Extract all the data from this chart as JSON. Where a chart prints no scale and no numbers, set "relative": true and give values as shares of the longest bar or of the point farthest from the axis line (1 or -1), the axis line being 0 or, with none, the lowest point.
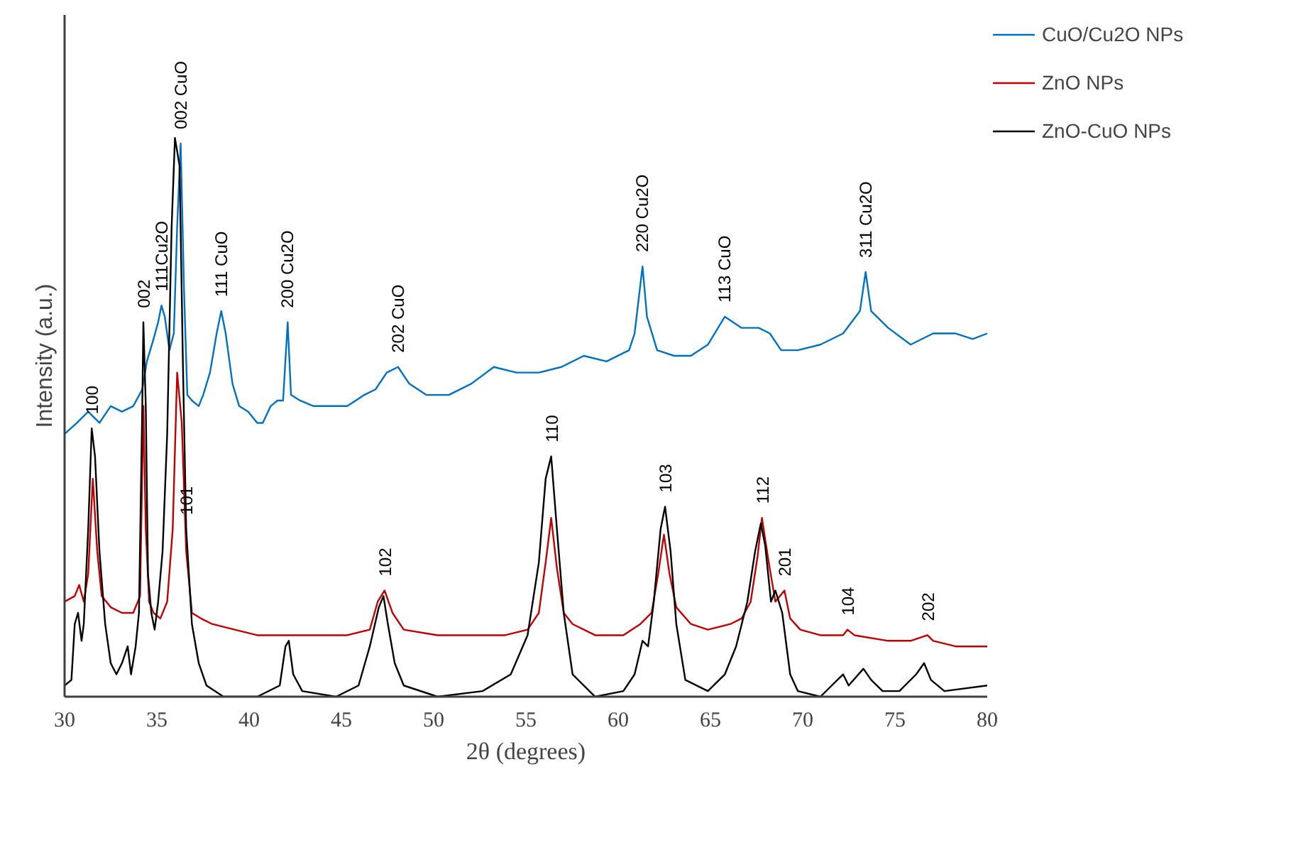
{
  "chart_data": {
    "type": "line",
    "relative": true,
    "xlabel": "2θ (degrees)",
    "ylabel": "Intensity (a.u.)",
    "xlim": [
      30,
      80
    ],
    "xticks": [
      30,
      35,
      40,
      45,
      50,
      55,
      60,
      65,
      70,
      75,
      80
    ],
    "grid": false,
    "legend": "right",
    "marker": "none",
    "line_style": "solid",
    "series": [
      {
        "name": "CuO/Cu2O NPs",
        "color": "#0070c0",
        "x": [
          30.0,
          30.67,
          31.28,
          31.89,
          32.5,
          33.11,
          33.72,
          34.21,
          34.46,
          34.82,
          35.07,
          35.25,
          35.43,
          35.68,
          35.92,
          36.1,
          36.29,
          36.47,
          36.65,
          36.9,
          37.27,
          37.51,
          37.88,
          38.24,
          38.49,
          38.73,
          39.1,
          39.46,
          39.95,
          40.44,
          40.74,
          41.17,
          41.54,
          41.84,
          42.09,
          42.27,
          42.76,
          43.49,
          44.41,
          45.32,
          46.24,
          46.85,
          47.46,
          48.07,
          48.68,
          49.6,
          50.82,
          52.04,
          53.26,
          54.48,
          55.7,
          56.92,
          58.14,
          59.37,
          60.59,
          60.89,
          61.32,
          61.56,
          62.11,
          63.03,
          63.94,
          64.86,
          65.78,
          66.69,
          67.61,
          68.22,
          68.83,
          69.74,
          70.96,
          72.19,
          73.1,
          73.41,
          73.71,
          74.63,
          75.85,
          77.07,
          78.29,
          79.21,
          80.0
        ],
        "values": [
          0.47,
          0.49,
          0.51,
          0.49,
          0.52,
          0.51,
          0.52,
          0.55,
          0.6,
          0.64,
          0.67,
          0.7,
          0.68,
          0.62,
          0.65,
          0.84,
          0.99,
          0.73,
          0.54,
          0.53,
          0.52,
          0.54,
          0.58,
          0.65,
          0.69,
          0.65,
          0.56,
          0.52,
          0.51,
          0.49,
          0.49,
          0.52,
          0.53,
          0.53,
          0.67,
          0.54,
          0.53,
          0.52,
          0.52,
          0.52,
          0.54,
          0.55,
          0.58,
          0.59,
          0.56,
          0.54,
          0.54,
          0.56,
          0.59,
          0.58,
          0.58,
          0.59,
          0.61,
          0.6,
          0.62,
          0.65,
          0.77,
          0.68,
          0.62,
          0.61,
          0.61,
          0.63,
          0.68,
          0.66,
          0.66,
          0.65,
          0.62,
          0.62,
          0.63,
          0.65,
          0.69,
          0.76,
          0.69,
          0.66,
          0.63,
          0.65,
          0.65,
          0.64,
          0.65
        ]
      },
      {
        "name": "ZnO NPs",
        "color": "#c00000",
        "x": [
          30.0,
          30.55,
          30.79,
          31.04,
          31.28,
          31.53,
          31.77,
          32.01,
          32.5,
          33.11,
          33.72,
          34.09,
          34.27,
          34.4,
          34.58,
          34.82,
          35.19,
          35.56,
          35.86,
          36.1,
          36.35,
          36.59,
          36.9,
          37.39,
          38.0,
          39.22,
          40.44,
          41.97,
          43.49,
          45.32,
          46.54,
          46.97,
          47.34,
          47.77,
          48.38,
          50.21,
          52.04,
          53.87,
          55.09,
          55.7,
          56.07,
          56.37,
          56.68,
          57.05,
          57.53,
          58.75,
          60.28,
          61.2,
          61.81,
          62.17,
          62.48,
          62.78,
          63.15,
          63.94,
          64.86,
          66.08,
          66.69,
          67.18,
          67.55,
          67.79,
          68.16,
          68.52,
          69.01,
          69.32,
          69.87,
          70.96,
          72.19,
          72.43,
          72.8,
          74.63,
          75.85,
          76.76,
          77.07,
          78.29,
          80.0
        ],
        "values": [
          0.17,
          0.18,
          0.2,
          0.17,
          0.22,
          0.39,
          0.26,
          0.18,
          0.16,
          0.15,
          0.15,
          0.18,
          0.52,
          0.3,
          0.17,
          0.15,
          0.14,
          0.17,
          0.3,
          0.58,
          0.49,
          0.26,
          0.15,
          0.14,
          0.13,
          0.12,
          0.11,
          0.11,
          0.11,
          0.11,
          0.12,
          0.17,
          0.19,
          0.15,
          0.12,
          0.11,
          0.11,
          0.11,
          0.12,
          0.15,
          0.24,
          0.32,
          0.23,
          0.15,
          0.13,
          0.11,
          0.11,
          0.13,
          0.15,
          0.22,
          0.29,
          0.22,
          0.16,
          0.13,
          0.12,
          0.13,
          0.14,
          0.17,
          0.25,
          0.32,
          0.24,
          0.17,
          0.19,
          0.14,
          0.12,
          0.11,
          0.11,
          0.12,
          0.11,
          0.1,
          0.1,
          0.11,
          0.1,
          0.09,
          0.09
        ]
      },
      {
        "name": "ZnO-CuO NPs",
        "color": "#000000",
        "x": [
          30.0,
          30.37,
          30.55,
          30.73,
          30.92,
          31.04,
          31.28,
          31.47,
          31.65,
          31.89,
          32.2,
          32.5,
          32.81,
          33.11,
          33.42,
          33.6,
          33.85,
          34.03,
          34.21,
          34.27,
          34.4,
          34.52,
          34.7,
          34.88,
          35.07,
          35.31,
          35.56,
          35.8,
          35.98,
          36.23,
          36.41,
          36.59,
          36.9,
          37.27,
          37.69,
          38.61,
          40.44,
          41.66,
          41.97,
          42.15,
          42.39,
          42.88,
          44.71,
          45.93,
          46.54,
          47.03,
          47.28,
          47.52,
          47.89,
          48.38,
          50.21,
          52.65,
          54.18,
          55.09,
          55.7,
          56.07,
          56.37,
          56.68,
          57.05,
          57.53,
          58.75,
          60.28,
          60.89,
          61.32,
          61.62,
          61.93,
          62.3,
          62.54,
          62.84,
          63.15,
          63.64,
          64.86,
          65.78,
          66.39,
          67.0,
          67.42,
          67.73,
          67.97,
          68.28,
          68.52,
          68.89,
          69.32,
          69.74,
          70.96,
          71.88,
          72.19,
          72.49,
          73.29,
          73.71,
          74.33,
          75.24,
          76.15,
          76.58,
          76.95,
          77.68,
          80.0
        ],
        "values": [
          0.02,
          0.03,
          0.13,
          0.15,
          0.1,
          0.13,
          0.3,
          0.48,
          0.43,
          0.26,
          0.13,
          0.06,
          0.04,
          0.06,
          0.09,
          0.04,
          0.09,
          0.15,
          0.52,
          0.67,
          0.52,
          0.22,
          0.15,
          0.12,
          0.17,
          0.26,
          0.47,
          0.84,
          1.0,
          0.95,
          0.6,
          0.3,
          0.13,
          0.06,
          0.02,
          0.0,
          0.0,
          0.02,
          0.09,
          0.1,
          0.04,
          0.01,
          0.0,
          0.02,
          0.09,
          0.16,
          0.18,
          0.13,
          0.06,
          0.02,
          0.0,
          0.01,
          0.04,
          0.11,
          0.24,
          0.39,
          0.43,
          0.3,
          0.15,
          0.04,
          0.0,
          0.01,
          0.04,
          0.1,
          0.09,
          0.17,
          0.3,
          0.34,
          0.26,
          0.13,
          0.03,
          0.01,
          0.04,
          0.09,
          0.17,
          0.26,
          0.31,
          0.27,
          0.17,
          0.19,
          0.15,
          0.04,
          0.01,
          0.0,
          0.03,
          0.04,
          0.02,
          0.05,
          0.03,
          0.01,
          0.01,
          0.04,
          0.06,
          0.03,
          0.01,
          0.02
        ]
      }
    ],
    "annotations": [
      {
        "text": "100",
        "x": 31.47,
        "y": 0.48
      },
      {
        "text": "002",
        "x": 34.27,
        "y": 0.67
      },
      {
        "text": "111Cu2O",
        "x": 35.25,
        "y": 0.7
      },
      {
        "text": "002 CuO",
        "x": 36.29,
        "y": 0.99
      },
      {
        "text": "111 CuO",
        "x": 38.49,
        "y": 0.69
      },
      {
        "text": "200 Cu2O",
        "x": 42.09,
        "y": 0.67
      },
      {
        "text": "202 CuO",
        "x": 48.07,
        "y": 0.59
      },
      {
        "text": "220 Cu2O",
        "x": 61.32,
        "y": 0.77
      },
      {
        "text": "113 CuO",
        "x": 65.78,
        "y": 0.68
      },
      {
        "text": "311 Cu2O",
        "x": 73.41,
        "y": 0.76
      },
      {
        "text": "101",
        "x": 36.59,
        "y": 0.3
      },
      {
        "text": "102",
        "x": 47.34,
        "y": 0.19
      },
      {
        "text": "110",
        "x": 56.37,
        "y": 0.43
      },
      {
        "text": "103",
        "x": 62.54,
        "y": 0.34
      },
      {
        "text": "112",
        "x": 67.79,
        "y": 0.32
      },
      {
        "text": "201",
        "x": 69.01,
        "y": 0.19
      },
      {
        "text": "104",
        "x": 72.43,
        "y": 0.12
      },
      {
        "text": "202",
        "x": 76.76,
        "y": 0.11
      }
    ]
  }
}
